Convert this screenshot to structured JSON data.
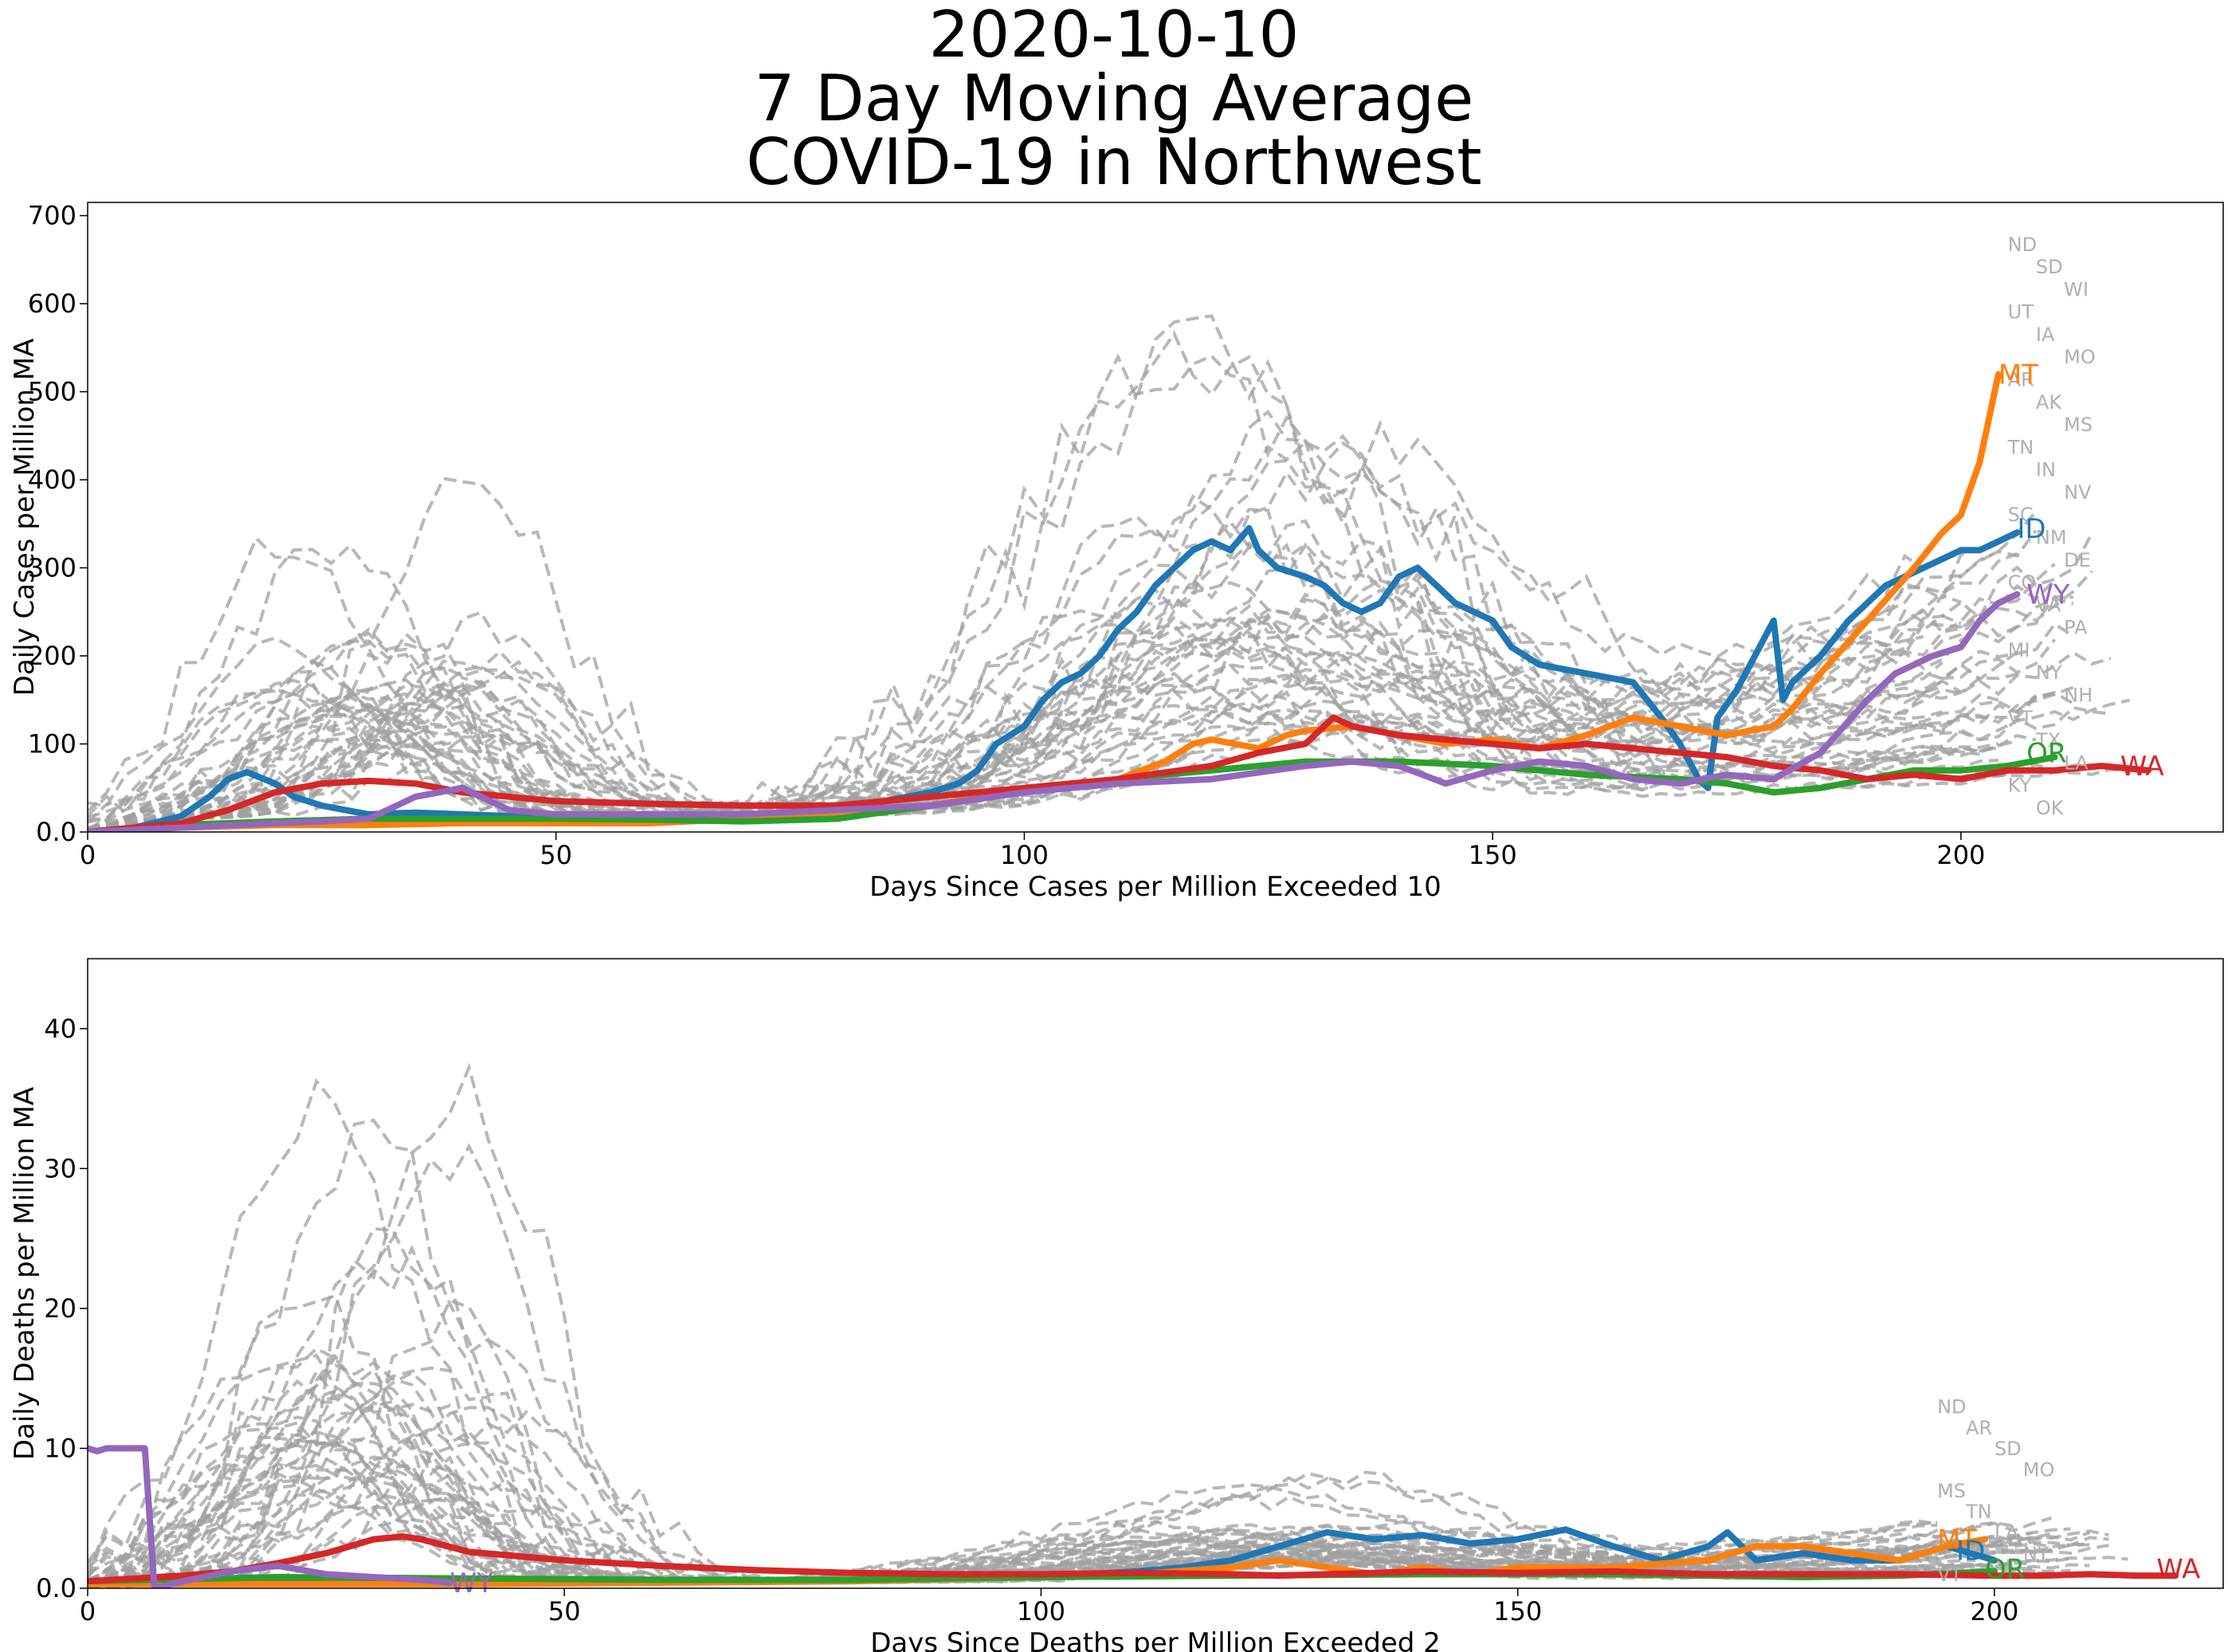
{
  "title": {
    "line1": "2020-10-10",
    "line2": "7 Day Moving Average",
    "line3": "COVID-19 in Northwest"
  },
  "colors": {
    "ID": "#1f77b4",
    "MT": "#ff7f0e",
    "OR": "#2ca02c",
    "WA": "#d62728",
    "WY": "#9467bd",
    "background_states": "#a0a0a0"
  },
  "chart_data": [
    {
      "type": "line",
      "xlabel": "Days Since Cases per Million Exceeded 10",
      "ylabel": "Daily Cases per Million MA",
      "xlim": [
        0,
        228
      ],
      "ylim": [
        0,
        715
      ],
      "xticks": [
        0,
        50,
        100,
        150,
        200
      ],
      "yticks": [
        0,
        100,
        200,
        300,
        400,
        500,
        600,
        700
      ],
      "xtick_labels": [
        "0",
        "50",
        "100",
        "150",
        "200"
      ],
      "ytick_labels": [
        "0.0",
        "100",
        "200",
        "300",
        "400",
        "500",
        "600",
        "700"
      ],
      "grid": false,
      "series": [
        {
          "name": "ID",
          "color": "#1f77b4",
          "x": [
            0,
            5,
            10,
            13,
            15,
            17,
            20,
            22,
            25,
            30,
            35,
            40,
            45,
            50,
            55,
            60,
            65,
            70,
            75,
            80,
            85,
            90,
            93,
            95,
            97,
            100,
            102,
            104,
            106,
            108,
            110,
            112,
            114,
            116,
            118,
            120,
            122,
            124,
            125,
            127,
            130,
            132,
            134,
            136,
            138,
            140,
            142,
            144,
            146,
            148,
            150,
            152,
            155,
            160,
            165,
            168,
            170,
            172,
            173,
            174,
            176,
            178,
            180,
            181,
            182,
            185,
            188,
            190,
            192,
            194,
            196,
            198,
            200,
            202,
            204,
            206
          ],
          "y": [
            0,
            5,
            18,
            40,
            60,
            68,
            55,
            40,
            30,
            20,
            22,
            20,
            18,
            15,
            15,
            15,
            18,
            20,
            18,
            25,
            35,
            45,
            55,
            70,
            100,
            120,
            150,
            170,
            180,
            200,
            230,
            250,
            280,
            300,
            320,
            330,
            320,
            345,
            320,
            300,
            290,
            280,
            260,
            250,
            260,
            290,
            300,
            280,
            260,
            250,
            240,
            210,
            190,
            180,
            170,
            130,
            100,
            60,
            50,
            130,
            160,
            200,
            240,
            150,
            170,
            200,
            240,
            260,
            280,
            290,
            300,
            310,
            320,
            320,
            330,
            340
          ]
        },
        {
          "name": "MT",
          "color": "#ff7f0e",
          "x": [
            0,
            10,
            20,
            30,
            40,
            50,
            60,
            70,
            80,
            90,
            95,
            100,
            105,
            110,
            115,
            118,
            120,
            125,
            128,
            130,
            135,
            140,
            145,
            150,
            155,
            160,
            165,
            170,
            175,
            180,
            182,
            185,
            190,
            195,
            198,
            200,
            202,
            204
          ],
          "y": [
            0,
            5,
            8,
            8,
            10,
            10,
            10,
            15,
            20,
            30,
            40,
            50,
            55,
            60,
            80,
            100,
            105,
            95,
            110,
            115,
            120,
            110,
            100,
            105,
            95,
            110,
            130,
            120,
            110,
            120,
            140,
            180,
            240,
            300,
            340,
            360,
            420,
            520
          ]
        },
        {
          "name": "OR",
          "color": "#2ca02c",
          "x": [
            0,
            10,
            20,
            30,
            40,
            50,
            60,
            70,
            80,
            90,
            100,
            110,
            120,
            130,
            140,
            150,
            160,
            170,
            175,
            180,
            185,
            190,
            195,
            200,
            205,
            210
          ],
          "y": [
            0,
            8,
            12,
            15,
            15,
            15,
            14,
            12,
            15,
            30,
            45,
            60,
            70,
            80,
            80,
            75,
            65,
            60,
            55,
            45,
            50,
            60,
            70,
            70,
            75,
            85
          ]
        },
        {
          "name": "WA",
          "color": "#d62728",
          "x": [
            0,
            10,
            15,
            20,
            25,
            30,
            35,
            40,
            45,
            50,
            60,
            70,
            80,
            90,
            100,
            110,
            120,
            125,
            130,
            133,
            135,
            140,
            145,
            150,
            155,
            160,
            165,
            170,
            175,
            180,
            185,
            190,
            195,
            200,
            205,
            210,
            215,
            220
          ],
          "y": [
            0,
            10,
            25,
            45,
            55,
            58,
            55,
            45,
            40,
            35,
            32,
            30,
            30,
            40,
            50,
            60,
            75,
            90,
            100,
            130,
            120,
            110,
            105,
            100,
            95,
            100,
            95,
            90,
            85,
            75,
            70,
            60,
            65,
            60,
            70,
            70,
            75,
            70
          ]
        },
        {
          "name": "WY",
          "color": "#9467bd",
          "x": [
            0,
            10,
            20,
            25,
            30,
            35,
            40,
            45,
            50,
            55,
            60,
            70,
            80,
            90,
            100,
            110,
            120,
            130,
            135,
            140,
            145,
            150,
            155,
            160,
            165,
            170,
            175,
            180,
            185,
            190,
            193,
            195,
            197,
            200,
            202,
            204,
            206
          ],
          "y": [
            0,
            5,
            10,
            12,
            15,
            40,
            50,
            25,
            20,
            20,
            20,
            20,
            25,
            30,
            45,
            55,
            60,
            75,
            80,
            75,
            55,
            70,
            80,
            75,
            60,
            55,
            65,
            60,
            90,
            150,
            180,
            190,
            200,
            210,
            240,
            260,
            270
          ]
        }
      ],
      "background_state_labels": [
        "ND",
        "SD",
        "WI",
        "UT",
        "IA",
        "MO",
        "AR",
        "AK",
        "MS",
        "TN",
        "IN",
        "NV",
        "SC",
        "NM",
        "DE",
        "CO",
        "VA",
        "PA",
        "MI",
        "NY",
        "NH",
        "VT",
        "TX",
        "LA",
        "KY",
        "OK"
      ],
      "annotations": [
        {
          "text": "MT",
          "x": 204,
          "y": 520
        },
        {
          "text": "ID",
          "x": 206,
          "y": 345
        },
        {
          "text": "WY",
          "x": 207,
          "y": 270
        },
        {
          "text": "OR",
          "x": 207,
          "y": 90
        },
        {
          "text": "WA",
          "x": 217,
          "y": 75
        }
      ]
    },
    {
      "type": "line",
      "xlabel": "Days Since Deaths per Million Exceeded 2",
      "ylabel": "Daily Deaths per Million MA",
      "xlim": [
        0,
        224
      ],
      "ylim": [
        0,
        45
      ],
      "xticks": [
        0,
        50,
        100,
        150,
        200
      ],
      "yticks": [
        0,
        10,
        20,
        30,
        40
      ],
      "xtick_labels": [
        "0",
        "50",
        "100",
        "150",
        "200"
      ],
      "ytick_labels": [
        "0.0",
        "10",
        "20",
        "30",
        "40"
      ],
      "grid": false,
      "series": [
        {
          "name": "ID",
          "color": "#1f77b4",
          "x": [
            0,
            20,
            40,
            60,
            80,
            100,
            110,
            115,
            120,
            125,
            130,
            135,
            140,
            145,
            150,
            155,
            160,
            165,
            170,
            172,
            175,
            180,
            185,
            190,
            195,
            200
          ],
          "y": [
            0.5,
            0.6,
            0.5,
            0.5,
            0.6,
            0.8,
            1.2,
            1.5,
            2,
            3,
            4,
            3.5,
            3.8,
            3.2,
            3.5,
            4.2,
            3,
            2,
            3,
            4,
            2,
            2.5,
            2,
            2,
            3,
            2
          ]
        },
        {
          "name": "MT",
          "color": "#ff7f0e",
          "x": [
            0,
            20,
            40,
            60,
            80,
            100,
            110,
            120,
            125,
            130,
            135,
            140,
            145,
            150,
            160,
            170,
            175,
            180,
            185,
            190,
            195,
            199
          ],
          "y": [
            0.3,
            0.3,
            0.3,
            0.4,
            0.5,
            0.8,
            1,
            1.5,
            2,
            1.5,
            1,
            1.5,
            1,
            1.5,
            1.5,
            2,
            3,
            3,
            2.5,
            2,
            3,
            3.5
          ]
        },
        {
          "name": "OR",
          "color": "#2ca02c",
          "x": [
            0,
            20,
            40,
            60,
            80,
            100,
            120,
            140,
            160,
            180,
            190,
            200
          ],
          "y": [
            0.5,
            0.8,
            0.7,
            0.6,
            0.6,
            0.8,
            0.9,
            1,
            1,
            0.8,
            0.9,
            1.2
          ]
        },
        {
          "name": "WA",
          "color": "#d62728",
          "x": [
            0,
            5,
            10,
            15,
            20,
            25,
            30,
            33,
            35,
            40,
            45,
            50,
            55,
            60,
            70,
            80,
            90,
            100,
            110,
            120,
            125,
            130,
            135,
            140,
            150,
            160,
            170,
            180,
            190,
            200,
            205,
            210,
            215,
            219
          ],
          "y": [
            0.5,
            0.7,
            0.9,
            1.2,
            1.8,
            2.5,
            3.5,
            3.7,
            3.5,
            2.6,
            2.3,
            2,
            1.8,
            1.6,
            1.3,
            1.1,
            1,
            1,
            1.1,
            1,
            0.9,
            1,
            1.1,
            1.2,
            1.1,
            1.2,
            1,
            1,
            1,
            0.9,
            0.9,
            1,
            0.9,
            0.9
          ]
        },
        {
          "name": "WY",
          "color": "#9467bd",
          "x": [
            0,
            1,
            2,
            6,
            7,
            10,
            15,
            20,
            25,
            30,
            35,
            38
          ],
          "y": [
            10,
            9.8,
            10,
            10,
            0,
            0.5,
            1.2,
            1.6,
            1,
            0.8,
            0.6,
            0.4
          ]
        }
      ],
      "background_state_labels": [
        "ND",
        "AR",
        "SD",
        "MO",
        "MS",
        "TN",
        "LA",
        "NY",
        "VT"
      ],
      "annotations": [
        {
          "text": "MT",
          "x": 194,
          "y": 3.5
        },
        {
          "text": "ID",
          "x": 196,
          "y": 2.7
        },
        {
          "text": "OR",
          "x": 199,
          "y": 1.4
        },
        {
          "text": "WA",
          "x": 217,
          "y": 1.4
        },
        {
          "text": "WY",
          "x": 38,
          "y": 0.4
        }
      ]
    }
  ]
}
